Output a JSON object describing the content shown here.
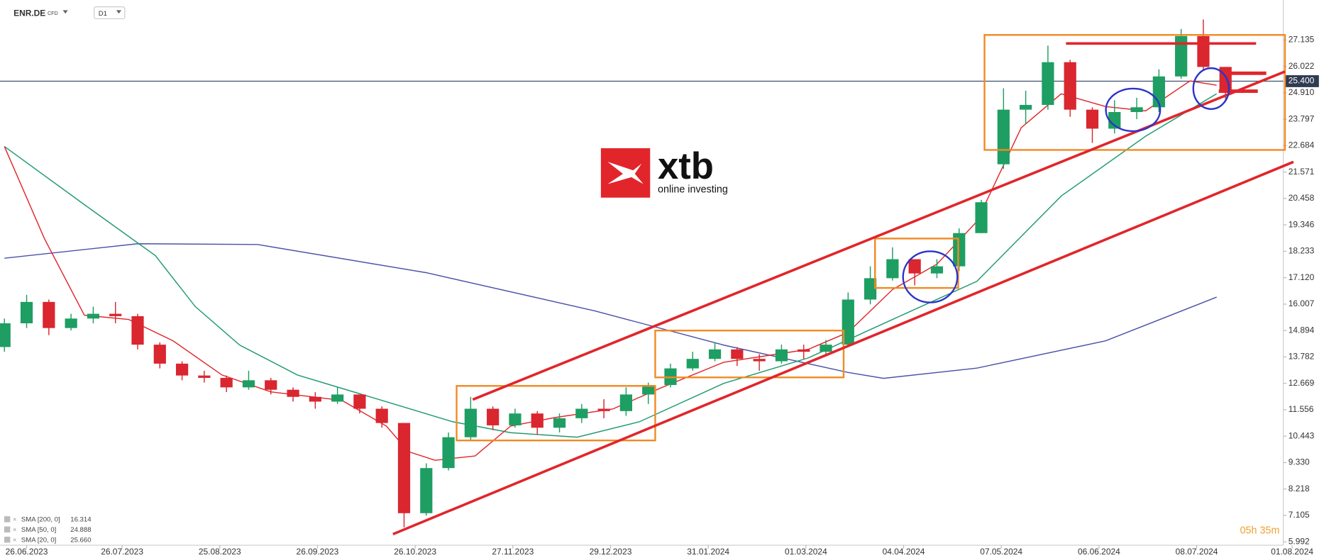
{
  "header": {
    "symbol": "ENR.DE",
    "instrument": "CFD",
    "timeframe": "D1"
  },
  "logo": {
    "mark": "xtb",
    "tagline": "online investing"
  },
  "countdown": "05h 35m",
  "chart_data": {
    "type": "candlestick",
    "xlim": [
      -6,
      283
    ],
    "ylim": [
      5.85,
      28.82
    ],
    "grid": false,
    "up_color": "#1e9e62",
    "down_color": "#d9262f",
    "current_price": {
      "value": 25.4,
      "label": "25.400"
    },
    "yticks": [
      5.992,
      7.105,
      8.218,
      {
        "value": 9.33,
        "label": "9.330"
      },
      10.443,
      11.556,
      12.669,
      13.782,
      14.894,
      16.007,
      {
        "value": 17.12,
        "label": "17.120"
      },
      18.233,
      19.346,
      20.458,
      21.571,
      22.684,
      23.797,
      {
        "value": 24.91,
        "label": "24.910"
      },
      26.022,
      27.135
    ],
    "xticks": [
      {
        "value": 0,
        "label": "26.06.2023"
      },
      {
        "value": 21.5,
        "label": "26.07.2023"
      },
      {
        "value": 43.5,
        "label": "25.08.2023"
      },
      {
        "value": 65.5,
        "label": "26.09.2023"
      },
      {
        "value": 87.5,
        "label": "26.10.2023"
      },
      {
        "value": 109.5,
        "label": "27.11.2023"
      },
      {
        "value": 131.5,
        "label": "29.12.2023"
      },
      {
        "value": 153.5,
        "label": "31.01.2024"
      },
      {
        "value": 175.5,
        "label": "01.03.2024"
      },
      {
        "value": 197.5,
        "label": "04.04.2024"
      },
      {
        "value": 219.5,
        "label": "07.05.2024"
      },
      {
        "value": 241.5,
        "label": "06.06.2024"
      },
      {
        "value": 263.5,
        "label": "08.07.2024"
      },
      {
        "value": 285,
        "label": "01.08.2024"
      }
    ],
    "candles": {
      "x": [
        -5,
        0,
        5,
        10,
        15,
        20,
        25,
        30,
        35,
        40,
        45,
        50,
        55,
        60,
        65,
        70,
        75,
        80,
        85,
        90,
        95,
        100,
        105,
        110,
        115,
        120,
        125,
        130,
        135,
        140,
        145,
        150,
        155,
        160,
        165,
        170,
        175,
        180,
        185,
        190,
        195,
        200,
        205,
        210,
        215,
        220,
        225,
        230,
        235,
        240,
        245,
        250,
        255,
        260,
        265,
        270
      ],
      "open": [
        14.2,
        15.2,
        16.1,
        15.0,
        15.4,
        15.6,
        15.5,
        14.3,
        13.5,
        13.0,
        12.9,
        12.5,
        12.8,
        12.4,
        12.1,
        11.9,
        12.2,
        11.6,
        11.0,
        7.2,
        9.1,
        10.4,
        11.6,
        10.9,
        11.4,
        10.8,
        11.2,
        11.6,
        11.5,
        12.2,
        12.6,
        13.3,
        13.7,
        14.1,
        13.7,
        13.6,
        14.1,
        14.0,
        14.3,
        16.2,
        17.1,
        17.9,
        17.3,
        17.6,
        19.0,
        21.9,
        24.2,
        24.4,
        26.2,
        24.2,
        23.4,
        24.1,
        24.3,
        25.6,
        27.3,
        26.0
      ],
      "high": [
        15.4,
        16.4,
        16.2,
        15.6,
        15.9,
        16.1,
        15.6,
        14.4,
        13.6,
        13.2,
        13.0,
        13.2,
        12.9,
        12.5,
        12.3,
        12.5,
        12.2,
        11.7,
        11.0,
        9.3,
        10.6,
        12.1,
        11.7,
        11.6,
        11.5,
        11.4,
        11.8,
        12.0,
        12.5,
        12.7,
        13.5,
        14.0,
        14.4,
        14.2,
        13.9,
        14.3,
        14.3,
        14.5,
        16.5,
        17.6,
        18.4,
        17.9,
        17.9,
        19.2,
        20.4,
        25.1,
        25.0,
        26.9,
        26.3,
        24.3,
        24.6,
        24.7,
        25.9,
        27.6,
        28.0,
        26.0
      ],
      "low": [
        14.0,
        15.0,
        14.7,
        14.9,
        15.2,
        15.2,
        14.1,
        13.3,
        12.8,
        12.7,
        12.3,
        12.4,
        12.2,
        11.9,
        11.6,
        11.8,
        11.4,
        10.8,
        6.6,
        7.1,
        9.0,
        10.3,
        10.7,
        10.8,
        10.5,
        10.6,
        11.0,
        11.2,
        11.3,
        11.8,
        12.5,
        13.2,
        13.6,
        13.4,
        13.2,
        13.5,
        13.7,
        13.8,
        14.2,
        16.0,
        17.0,
        16.8,
        17.1,
        17.4,
        19.0,
        21.7,
        23.6,
        24.2,
        23.9,
        22.8,
        23.2,
        23.8,
        24.1,
        25.5,
        25.9,
        24.6
      ],
      "close": [
        15.2,
        16.1,
        15.0,
        15.4,
        15.6,
        15.5,
        14.3,
        13.5,
        13.0,
        12.9,
        12.5,
        12.8,
        12.4,
        12.1,
        11.9,
        12.2,
        11.6,
        11.0,
        7.2,
        9.1,
        10.4,
        11.6,
        10.9,
        11.4,
        10.8,
        11.2,
        11.6,
        11.5,
        12.2,
        12.6,
        13.3,
        13.7,
        14.1,
        13.7,
        13.6,
        14.1,
        14.0,
        14.3,
        16.2,
        17.1,
        17.9,
        17.3,
        17.6,
        19.0,
        20.3,
        24.2,
        24.4,
        26.2,
        24.2,
        23.4,
        24.1,
        24.3,
        25.6,
        27.3,
        26.0,
        25.0
      ]
    },
    "series": [
      {
        "name": "SMA [200, 0]",
        "last_value": 16.314,
        "color": "#4a52a8",
        "x": [
          -5,
          25,
          52,
          90,
          128,
          157,
          185,
          193,
          214,
          243,
          268
        ],
        "values": [
          17.94,
          18.55,
          18.52,
          17.33,
          15.72,
          14.28,
          13.13,
          12.88,
          13.31,
          14.46,
          16.3
        ]
      },
      {
        "name": "SMA [50, 0]",
        "last_value": 24.888,
        "color": "#1f9a6e",
        "x": [
          -5,
          13,
          29,
          38,
          48,
          61,
          80,
          96,
          109,
          124,
          138,
          157,
          176,
          195,
          214,
          233,
          252,
          268
        ],
        "values": [
          22.65,
          20.2,
          18.05,
          15.9,
          14.28,
          13.02,
          11.95,
          11.05,
          10.59,
          10.4,
          11.05,
          12.67,
          13.74,
          15.36,
          16.97,
          20.56,
          23.08,
          24.87
        ]
      },
      {
        "name": "SMA [20, 0]",
        "last_value": 25.66,
        "value_label": "25.660",
        "color": "#e0262b",
        "x": [
          -5,
          4,
          13,
          23,
          33,
          44,
          55,
          71,
          81,
          86,
          92,
          101,
          109,
          119,
          132,
          143,
          157,
          176,
          185,
          195,
          205,
          214,
          224,
          233,
          243,
          252,
          262,
          268
        ],
        "values": [
          22.65,
          18.77,
          15.54,
          15.36,
          14.46,
          13.02,
          12.31,
          11.95,
          10.87,
          9.79,
          9.43,
          9.61,
          10.87,
          11.23,
          11.59,
          12.49,
          13.56,
          14.1,
          14.82,
          16.62,
          17.69,
          19.49,
          23.44,
          24.87,
          24.33,
          24.15,
          25.41,
          25.23
        ]
      }
    ]
  }
}
